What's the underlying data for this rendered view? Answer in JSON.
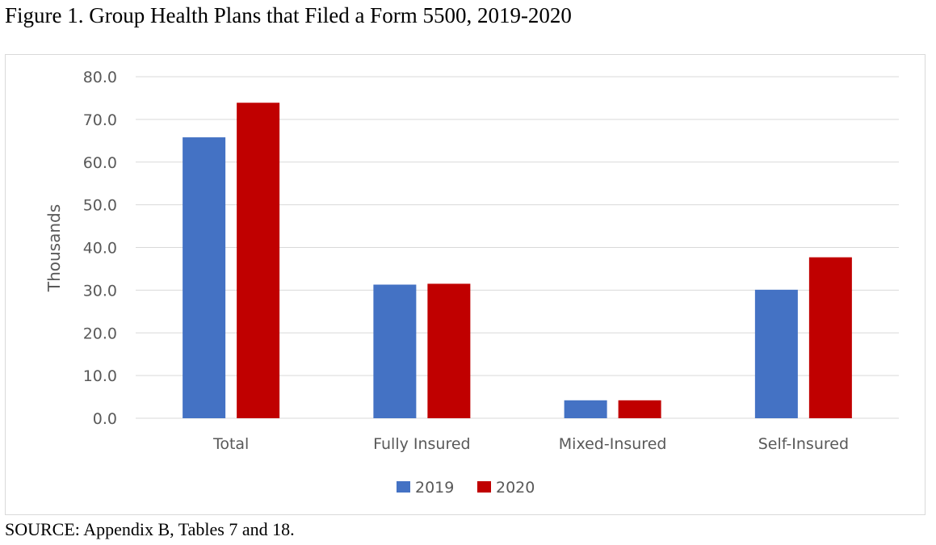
{
  "figure": {
    "title": "Figure 1. Group Health Plans that Filed a Form 5500, 2019-2020",
    "source": "SOURCE: Appendix B, Tables 7 and 18."
  },
  "chart_data": {
    "type": "bar",
    "title": "",
    "xlabel": "",
    "ylabel": "Thousands",
    "ylim": [
      0,
      80
    ],
    "yticks": [
      0,
      10,
      20,
      30,
      40,
      50,
      60,
      70,
      80
    ],
    "ytick_labels": [
      "0.0",
      "10.0",
      "20.0",
      "30.0",
      "40.0",
      "50.0",
      "60.0",
      "70.0",
      "80.0"
    ],
    "categories": [
      "Total",
      "Fully Insured",
      "Mixed-Insured",
      "Self-Insured"
    ],
    "series": [
      {
        "name": "2019",
        "color": "#4472c4",
        "values": [
          65.8,
          31.3,
          4.2,
          30.1
        ]
      },
      {
        "name": "2020",
        "color": "#c00000",
        "values": [
          73.9,
          31.5,
          4.2,
          37.7
        ]
      }
    ],
    "grid": true,
    "legend": "bottom"
  }
}
